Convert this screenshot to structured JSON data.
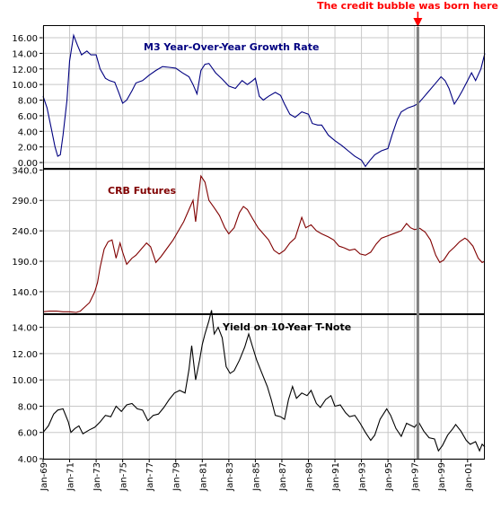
{
  "annotation": {
    "text": "The credit bubble was born here",
    "color": "#ff0000",
    "x_label": "Jan-97"
  },
  "x_axis": {
    "tick_labels": [
      "Jan-69",
      "Jan-71",
      "Jan-73",
      "Jan-75",
      "Jan-77",
      "Jan-79",
      "Jan-81",
      "Jan-83",
      "Jan-85",
      "Jan-87",
      "Jan-89",
      "Jan-91",
      "Jan-93",
      "Jan-95",
      "Jan-97",
      "Jan-99",
      "Jan-01"
    ],
    "start_year": 1969,
    "end_year": 2002.3
  },
  "chart_data": [
    {
      "type": "line",
      "title": "M3 Year-Over-Year Growth Rate",
      "color": "#000080",
      "y_ticks": [
        "0.00",
        "2.00",
        "4.00",
        "6.00",
        "8.00",
        "10.00",
        "12.00",
        "14.00",
        "16.00"
      ],
      "ylim": [
        -0.8,
        17.5
      ],
      "grid": true,
      "points": [
        [
          1969.0,
          8.5
        ],
        [
          1969.3,
          7.0
        ],
        [
          1969.6,
          4.5
        ],
        [
          1969.9,
          2.0
        ],
        [
          1970.1,
          0.8
        ],
        [
          1970.3,
          1.0
        ],
        [
          1970.5,
          3.5
        ],
        [
          1970.8,
          8.0
        ],
        [
          1971.0,
          13.0
        ],
        [
          1971.3,
          16.3
        ],
        [
          1971.6,
          15.0
        ],
        [
          1971.9,
          13.8
        ],
        [
          1972.3,
          14.3
        ],
        [
          1972.6,
          13.8
        ],
        [
          1973.0,
          13.8
        ],
        [
          1973.3,
          12.0
        ],
        [
          1973.7,
          10.8
        ],
        [
          1974.0,
          10.5
        ],
        [
          1974.4,
          10.3
        ],
        [
          1974.7,
          9.0
        ],
        [
          1975.0,
          7.6
        ],
        [
          1975.3,
          8.0
        ],
        [
          1975.7,
          9.2
        ],
        [
          1976.0,
          10.2
        ],
        [
          1976.5,
          10.5
        ],
        [
          1977.0,
          11.2
        ],
        [
          1977.5,
          11.8
        ],
        [
          1978.0,
          12.3
        ],
        [
          1978.5,
          12.2
        ],
        [
          1979.0,
          12.1
        ],
        [
          1979.5,
          11.5
        ],
        [
          1980.0,
          11.0
        ],
        [
          1980.3,
          10.0
        ],
        [
          1980.6,
          8.8
        ],
        [
          1980.9,
          11.8
        ],
        [
          1981.2,
          12.6
        ],
        [
          1981.5,
          12.7
        ],
        [
          1981.8,
          12.0
        ],
        [
          1982.0,
          11.5
        ],
        [
          1982.5,
          10.7
        ],
        [
          1983.0,
          9.8
        ],
        [
          1983.5,
          9.5
        ],
        [
          1984.0,
          10.5
        ],
        [
          1984.4,
          10.0
        ],
        [
          1984.8,
          10.5
        ],
        [
          1985.0,
          10.8
        ],
        [
          1985.3,
          8.5
        ],
        [
          1985.6,
          8.0
        ],
        [
          1986.0,
          8.5
        ],
        [
          1986.5,
          9.0
        ],
        [
          1986.9,
          8.6
        ],
        [
          1987.2,
          7.5
        ],
        [
          1987.6,
          6.2
        ],
        [
          1988.0,
          5.8
        ],
        [
          1988.5,
          6.5
        ],
        [
          1989.0,
          6.2
        ],
        [
          1989.3,
          5.0
        ],
        [
          1989.7,
          4.8
        ],
        [
          1990.0,
          4.8
        ],
        [
          1990.5,
          3.5
        ],
        [
          1991.0,
          2.8
        ],
        [
          1991.5,
          2.2
        ],
        [
          1992.0,
          1.5
        ],
        [
          1992.5,
          0.8
        ],
        [
          1993.0,
          0.3
        ],
        [
          1993.3,
          -0.5
        ],
        [
          1993.6,
          0.2
        ],
        [
          1994.0,
          1.0
        ],
        [
          1994.5,
          1.5
        ],
        [
          1995.0,
          1.8
        ],
        [
          1995.3,
          3.5
        ],
        [
          1995.7,
          5.5
        ],
        [
          1996.0,
          6.5
        ],
        [
          1996.5,
          7.0
        ],
        [
          1997.0,
          7.3
        ],
        [
          1997.3,
          7.6
        ],
        [
          1997.6,
          8.2
        ],
        [
          1998.0,
          9.0
        ],
        [
          1998.5,
          10.0
        ],
        [
          1999.0,
          11.0
        ],
        [
          1999.3,
          10.5
        ],
        [
          1999.6,
          9.5
        ],
        [
          2000.0,
          7.5
        ],
        [
          2000.3,
          8.3
        ],
        [
          2000.6,
          9.2
        ],
        [
          2001.0,
          10.5
        ],
        [
          2001.3,
          11.5
        ],
        [
          2001.6,
          10.5
        ],
        [
          2002.0,
          12.0
        ],
        [
          2002.3,
          14.0
        ]
      ]
    },
    {
      "type": "line",
      "title": "CRB Futures",
      "color": "#800000",
      "y_ticks": [
        "140.0",
        "190.0",
        "240.0",
        "290.0",
        "340.0"
      ],
      "ylim": [
        103,
        342
      ],
      "grid": true,
      "points": [
        [
          1969.0,
          107
        ],
        [
          1969.5,
          108
        ],
        [
          1970.0,
          108
        ],
        [
          1970.5,
          107
        ],
        [
          1971.0,
          107
        ],
        [
          1971.5,
          106
        ],
        [
          1971.8,
          108
        ],
        [
          1972.0,
          112
        ],
        [
          1972.5,
          122
        ],
        [
          1972.9,
          140
        ],
        [
          1973.1,
          155
        ],
        [
          1973.3,
          180
        ],
        [
          1973.6,
          210
        ],
        [
          1973.9,
          222
        ],
        [
          1974.2,
          225
        ],
        [
          1974.5,
          195
        ],
        [
          1974.8,
          220
        ],
        [
          1975.0,
          205
        ],
        [
          1975.3,
          185
        ],
        [
          1975.7,
          195
        ],
        [
          1976.0,
          200
        ],
        [
          1976.4,
          210
        ],
        [
          1976.8,
          220
        ],
        [
          1977.1,
          214
        ],
        [
          1977.5,
          188
        ],
        [
          1977.9,
          198
        ],
        [
          1978.3,
          210
        ],
        [
          1978.8,
          225
        ],
        [
          1979.2,
          240
        ],
        [
          1979.6,
          255
        ],
        [
          1980.0,
          275
        ],
        [
          1980.3,
          290
        ],
        [
          1980.5,
          255
        ],
        [
          1980.7,
          295
        ],
        [
          1980.9,
          330
        ],
        [
          1981.2,
          320
        ],
        [
          1981.5,
          290
        ],
        [
          1981.9,
          278
        ],
        [
          1982.3,
          265
        ],
        [
          1982.7,
          245
        ],
        [
          1983.0,
          235
        ],
        [
          1983.4,
          245
        ],
        [
          1983.8,
          270
        ],
        [
          1984.1,
          280
        ],
        [
          1984.4,
          275
        ],
        [
          1984.8,
          260
        ],
        [
          1985.2,
          245
        ],
        [
          1985.6,
          235
        ],
        [
          1986.0,
          225
        ],
        [
          1986.4,
          208
        ],
        [
          1986.8,
          202
        ],
        [
          1987.2,
          208
        ],
        [
          1987.6,
          220
        ],
        [
          1988.0,
          228
        ],
        [
          1988.5,
          262
        ],
        [
          1988.8,
          245
        ],
        [
          1989.2,
          250
        ],
        [
          1989.6,
          240
        ],
        [
          1990.0,
          235
        ],
        [
          1990.5,
          230
        ],
        [
          1990.9,
          225
        ],
        [
          1991.3,
          215
        ],
        [
          1991.7,
          212
        ],
        [
          1992.1,
          208
        ],
        [
          1992.5,
          210
        ],
        [
          1992.9,
          202
        ],
        [
          1993.3,
          200
        ],
        [
          1993.7,
          205
        ],
        [
          1994.1,
          218
        ],
        [
          1994.5,
          228
        ],
        [
          1995.0,
          232
        ],
        [
          1995.5,
          236
        ],
        [
          1996.0,
          240
        ],
        [
          1996.4,
          252
        ],
        [
          1996.7,
          245
        ],
        [
          1997.0,
          242
        ],
        [
          1997.4,
          244
        ],
        [
          1997.8,
          238
        ],
        [
          1998.2,
          225
        ],
        [
          1998.6,
          200
        ],
        [
          1998.9,
          188
        ],
        [
          1999.2,
          192
        ],
        [
          1999.6,
          205
        ],
        [
          2000.0,
          213
        ],
        [
          2000.4,
          222
        ],
        [
          2000.8,
          228
        ],
        [
          2001.0,
          225
        ],
        [
          2001.4,
          215
        ],
        [
          2001.8,
          195
        ],
        [
          2002.1,
          188
        ],
        [
          2002.3,
          190
        ]
      ]
    },
    {
      "type": "line",
      "title": "Yield on 10-Year T-Note",
      "color": "#000000",
      "y_ticks": [
        "4.00",
        "6.00",
        "8.00",
        "10.00",
        "12.00",
        "14.00"
      ],
      "ylim": [
        4.0,
        15.0
      ],
      "grid": true,
      "points": [
        [
          1969.0,
          6.0
        ],
        [
          1969.4,
          6.5
        ],
        [
          1969.8,
          7.4
        ],
        [
          1970.1,
          7.7
        ],
        [
          1970.5,
          7.8
        ],
        [
          1970.9,
          6.8
        ],
        [
          1971.1,
          6.0
        ],
        [
          1971.4,
          6.3
        ],
        [
          1971.7,
          6.5
        ],
        [
          1972.0,
          5.9
        ],
        [
          1972.5,
          6.2
        ],
        [
          1972.9,
          6.4
        ],
        [
          1973.3,
          6.8
        ],
        [
          1973.7,
          7.3
        ],
        [
          1974.1,
          7.2
        ],
        [
          1974.5,
          8.0
        ],
        [
          1974.9,
          7.6
        ],
        [
          1975.3,
          8.1
        ],
        [
          1975.7,
          8.2
        ],
        [
          1976.1,
          7.8
        ],
        [
          1976.5,
          7.7
        ],
        [
          1976.9,
          6.9
        ],
        [
          1977.3,
          7.3
        ],
        [
          1977.7,
          7.4
        ],
        [
          1978.1,
          7.9
        ],
        [
          1978.5,
          8.5
        ],
        [
          1978.9,
          9.0
        ],
        [
          1979.3,
          9.2
        ],
        [
          1979.7,
          9.0
        ],
        [
          1980.0,
          10.8
        ],
        [
          1980.2,
          12.6
        ],
        [
          1980.5,
          10.0
        ],
        [
          1980.8,
          11.5
        ],
        [
          1981.0,
          12.7
        ],
        [
          1981.2,
          13.5
        ],
        [
          1981.5,
          14.5
        ],
        [
          1981.7,
          15.3
        ],
        [
          1981.9,
          13.5
        ],
        [
          1982.2,
          14.0
        ],
        [
          1982.5,
          13.2
        ],
        [
          1982.8,
          11.0
        ],
        [
          1983.1,
          10.5
        ],
        [
          1983.4,
          10.7
        ],
        [
          1983.8,
          11.5
        ],
        [
          1984.2,
          12.5
        ],
        [
          1984.5,
          13.5
        ],
        [
          1984.8,
          12.5
        ],
        [
          1985.1,
          11.5
        ],
        [
          1985.5,
          10.5
        ],
        [
          1985.9,
          9.5
        ],
        [
          1986.2,
          8.5
        ],
        [
          1986.5,
          7.3
        ],
        [
          1986.9,
          7.2
        ],
        [
          1987.2,
          7.0
        ],
        [
          1987.5,
          8.5
        ],
        [
          1987.8,
          9.5
        ],
        [
          1988.1,
          8.6
        ],
        [
          1988.5,
          9.0
        ],
        [
          1988.9,
          8.8
        ],
        [
          1989.2,
          9.2
        ],
        [
          1989.6,
          8.2
        ],
        [
          1989.9,
          7.9
        ],
        [
          1990.3,
          8.5
        ],
        [
          1990.7,
          8.8
        ],
        [
          1991.0,
          8.0
        ],
        [
          1991.4,
          8.1
        ],
        [
          1991.8,
          7.5
        ],
        [
          1992.1,
          7.2
        ],
        [
          1992.5,
          7.3
        ],
        [
          1992.9,
          6.7
        ],
        [
          1993.3,
          6.0
        ],
        [
          1993.7,
          5.4
        ],
        [
          1994.0,
          5.8
        ],
        [
          1994.4,
          7.0
        ],
        [
          1994.9,
          7.8
        ],
        [
          1995.2,
          7.3
        ],
        [
          1995.6,
          6.3
        ],
        [
          1996.0,
          5.7
        ],
        [
          1996.4,
          6.7
        ],
        [
          1996.8,
          6.5
        ],
        [
          1997.0,
          6.4
        ],
        [
          1997.3,
          6.8
        ],
        [
          1997.7,
          6.1
        ],
        [
          1998.1,
          5.6
        ],
        [
          1998.5,
          5.5
        ],
        [
          1998.8,
          4.6
        ],
        [
          1999.1,
          5.0
        ],
        [
          1999.5,
          5.8
        ],
        [
          1999.9,
          6.3
        ],
        [
          2000.1,
          6.6
        ],
        [
          2000.5,
          6.1
        ],
        [
          2000.9,
          5.4
        ],
        [
          2001.2,
          5.1
        ],
        [
          2001.6,
          5.3
        ],
        [
          2001.9,
          4.6
        ],
        [
          2002.1,
          5.1
        ],
        [
          2002.3,
          4.9
        ]
      ]
    }
  ]
}
